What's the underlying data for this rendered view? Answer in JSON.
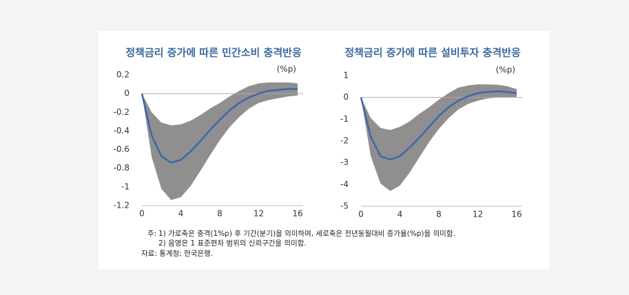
{
  "chart_data": [
    {
      "type": "line",
      "title": "정책금리 증가에 따른 민간소비 충격반응",
      "y_unit": "(%p)",
      "x": [
        0,
        1,
        2,
        3,
        4,
        5,
        6,
        7,
        8,
        9,
        10,
        11,
        12,
        13,
        14,
        15,
        16
      ],
      "values": [
        0,
        -0.45,
        -0.67,
        -0.74,
        -0.71,
        -0.62,
        -0.51,
        -0.39,
        -0.28,
        -0.18,
        -0.1,
        -0.04,
        0,
        0.03,
        0.04,
        0.05,
        0.05
      ],
      "band_lower": [
        0,
        -0.68,
        -1.02,
        -1.14,
        -1.11,
        -0.99,
        -0.83,
        -0.66,
        -0.5,
        -0.36,
        -0.25,
        -0.16,
        -0.1,
        -0.07,
        -0.05,
        -0.03,
        -0.02
      ],
      "band_upper": [
        0,
        -0.2,
        -0.31,
        -0.34,
        -0.33,
        -0.29,
        -0.23,
        -0.16,
        -0.1,
        -0.03,
        0.03,
        0.08,
        0.11,
        0.12,
        0.12,
        0.12,
        0.11
      ],
      "color": "#3d67a8",
      "band_color": "#8f8f8f",
      "xlim": [
        0,
        16
      ],
      "xticks": [
        0,
        4,
        8,
        12,
        16
      ],
      "ylim": [
        -1.2,
        0.2
      ],
      "yticks": [
        0.2,
        0,
        -0.2,
        -0.4,
        -0.6,
        -0.8,
        -1,
        -1.2
      ]
    },
    {
      "type": "line",
      "title": "정책금리 증가에 따른 설비투자 충격반응",
      "y_unit": "(%p)",
      "x": [
        0,
        1,
        2,
        3,
        4,
        5,
        6,
        7,
        8,
        9,
        10,
        11,
        12,
        13,
        14,
        15,
        16
      ],
      "values": [
        0,
        -1.8,
        -2.7,
        -2.85,
        -2.7,
        -2.3,
        -1.85,
        -1.35,
        -0.85,
        -0.45,
        -0.15,
        0.05,
        0.2,
        0.25,
        0.28,
        0.25,
        0.2
      ],
      "band_lower": [
        0,
        -2.7,
        -3.95,
        -4.3,
        -4.05,
        -3.45,
        -2.75,
        -2.05,
        -1.45,
        -0.95,
        -0.55,
        -0.3,
        -0.15,
        -0.05,
        0,
        0.02,
        0.02
      ],
      "band_upper": [
        0,
        -0.95,
        -1.4,
        -1.5,
        -1.35,
        -1.1,
        -0.75,
        -0.45,
        -0.1,
        0.2,
        0.45,
        0.55,
        0.6,
        0.6,
        0.58,
        0.52,
        0.38
      ],
      "color": "#3d67a8",
      "band_color": "#8f8f8f",
      "xlim": [
        0,
        16
      ],
      "xticks": [
        0,
        4,
        8,
        12,
        16
      ],
      "ylim": [
        -5,
        1
      ],
      "yticks": [
        1,
        0,
        -1,
        -2,
        -3,
        -4,
        -5
      ]
    }
  ],
  "notes": {
    "label": "주:",
    "items": [
      "1) 가로축은 충격(1%p) 후 기간(분기)을 의미하며, 세로축은 전년동월대비 증가율(%p)을 의미함.",
      "2) 음영은 1 표준편차 범위의 신뢰구간을 의미함."
    ]
  },
  "source": "자료: 통계청; 한국은행."
}
